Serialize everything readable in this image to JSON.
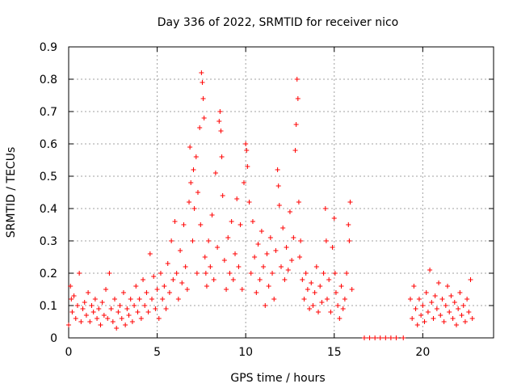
{
  "chart_data": {
    "type": "scatter",
    "title": "Day 336 of 2022, SRMTID for receiver nico",
    "xlabel": "GPS time / hours",
    "ylabel": "SRMTID / TECUs",
    "xlim": [
      0,
      24
    ],
    "ylim": [
      0,
      0.9
    ],
    "xticks": [
      0,
      5,
      10,
      15,
      20
    ],
    "xtick_labels": [
      "0",
      "5",
      "10",
      "15",
      "20"
    ],
    "yticks": [
      0,
      0.1,
      0.2,
      0.3,
      0.4,
      0.5,
      0.6,
      0.7,
      0.8,
      0.9
    ],
    "ytick_labels": [
      "0",
      "0.1",
      "0.2",
      "0.3",
      "0.4",
      "0.5",
      "0.6",
      "0.7",
      "0.8",
      "0.9"
    ],
    "grid": true,
    "marker": "+",
    "color": "#ff0000",
    "series": [
      {
        "name": "SRMTID",
        "points": [
          [
            0.0,
            0.04
          ],
          [
            0.1,
            0.16
          ],
          [
            0.15,
            0.12
          ],
          [
            0.2,
            0.08
          ],
          [
            0.3,
            0.13
          ],
          [
            0.4,
            0.06
          ],
          [
            0.5,
            0.1
          ],
          [
            0.6,
            0.2
          ],
          [
            0.7,
            0.05
          ],
          [
            0.8,
            0.09
          ],
          [
            0.9,
            0.11
          ],
          [
            1.0,
            0.07
          ],
          [
            1.1,
            0.14
          ],
          [
            1.2,
            0.05
          ],
          [
            1.3,
            0.1
          ],
          [
            1.4,
            0.08
          ],
          [
            1.5,
            0.12
          ],
          [
            1.6,
            0.06
          ],
          [
            1.7,
            0.09
          ],
          [
            1.8,
            0.04
          ],
          [
            1.9,
            0.11
          ],
          [
            2.0,
            0.07
          ],
          [
            2.1,
            0.15
          ],
          [
            2.2,
            0.06
          ],
          [
            2.3,
            0.2
          ],
          [
            2.4,
            0.09
          ],
          [
            2.5,
            0.05
          ],
          [
            2.6,
            0.12
          ],
          [
            2.7,
            0.03
          ],
          [
            2.8,
            0.08
          ],
          [
            2.9,
            0.1
          ],
          [
            3.0,
            0.06
          ],
          [
            3.1,
            0.14
          ],
          [
            3.2,
            0.04
          ],
          [
            3.3,
            0.09
          ],
          [
            3.4,
            0.07
          ],
          [
            3.5,
            0.12
          ],
          [
            3.6,
            0.05
          ],
          [
            3.7,
            0.1
          ],
          [
            3.8,
            0.16
          ],
          [
            3.9,
            0.08
          ],
          [
            4.0,
            0.12
          ],
          [
            4.1,
            0.06
          ],
          [
            4.2,
            0.18
          ],
          [
            4.3,
            0.1
          ],
          [
            4.4,
            0.14
          ],
          [
            4.5,
            0.08
          ],
          [
            4.6,
            0.26
          ],
          [
            4.7,
            0.12
          ],
          [
            4.8,
            0.19
          ],
          [
            4.9,
            0.09
          ],
          [
            5.0,
            0.15
          ],
          [
            5.1,
            0.06
          ],
          [
            5.2,
            0.2
          ],
          [
            5.3,
            0.12
          ],
          [
            5.4,
            0.16
          ],
          [
            5.5,
            0.09
          ],
          [
            5.6,
            0.23
          ],
          [
            5.7,
            0.14
          ],
          [
            5.8,
            0.3
          ],
          [
            5.9,
            0.18
          ],
          [
            6.0,
            0.36
          ],
          [
            6.1,
            0.2
          ],
          [
            6.2,
            0.12
          ],
          [
            6.3,
            0.27
          ],
          [
            6.4,
            0.17
          ],
          [
            6.5,
            0.35
          ],
          [
            6.6,
            0.22
          ],
          [
            6.7,
            0.15
          ],
          [
            6.8,
            0.42
          ],
          [
            6.85,
            0.59
          ],
          [
            6.9,
            0.48
          ],
          [
            7.0,
            0.3
          ],
          [
            7.05,
            0.52
          ],
          [
            7.1,
            0.4
          ],
          [
            7.2,
            0.56
          ],
          [
            7.25,
            0.2
          ],
          [
            7.3,
            0.45
          ],
          [
            7.4,
            0.65
          ],
          [
            7.45,
            0.35
          ],
          [
            7.5,
            0.82
          ],
          [
            7.55,
            0.79
          ],
          [
            7.6,
            0.74
          ],
          [
            7.65,
            0.68
          ],
          [
            7.7,
            0.25
          ],
          [
            7.75,
            0.2
          ],
          [
            7.8,
            0.16
          ],
          [
            7.9,
            0.3
          ],
          [
            8.0,
            0.22
          ],
          [
            8.1,
            0.38
          ],
          [
            8.2,
            0.18
          ],
          [
            8.3,
            0.51
          ],
          [
            8.4,
            0.28
          ],
          [
            8.5,
            0.67
          ],
          [
            8.55,
            0.7
          ],
          [
            8.6,
            0.64
          ],
          [
            8.65,
            0.56
          ],
          [
            8.7,
            0.44
          ],
          [
            8.8,
            0.24
          ],
          [
            8.9,
            0.15
          ],
          [
            9.0,
            0.31
          ],
          [
            9.1,
            0.2
          ],
          [
            9.2,
            0.36
          ],
          [
            9.3,
            0.18
          ],
          [
            9.4,
            0.26
          ],
          [
            9.5,
            0.43
          ],
          [
            9.6,
            0.22
          ],
          [
            9.7,
            0.35
          ],
          [
            9.8,
            0.15
          ],
          [
            9.9,
            0.48
          ],
          [
            10.0,
            0.6
          ],
          [
            10.05,
            0.58
          ],
          [
            10.1,
            0.53
          ],
          [
            10.2,
            0.42
          ],
          [
            10.3,
            0.2
          ],
          [
            10.4,
            0.36
          ],
          [
            10.5,
            0.25
          ],
          [
            10.6,
            0.14
          ],
          [
            10.7,
            0.29
          ],
          [
            10.8,
            0.18
          ],
          [
            10.9,
            0.33
          ],
          [
            11.0,
            0.22
          ],
          [
            11.1,
            0.1
          ],
          [
            11.2,
            0.26
          ],
          [
            11.3,
            0.16
          ],
          [
            11.4,
            0.31
          ],
          [
            11.5,
            0.2
          ],
          [
            11.6,
            0.12
          ],
          [
            11.7,
            0.27
          ],
          [
            11.8,
            0.52
          ],
          [
            11.85,
            0.47
          ],
          [
            11.9,
            0.41
          ],
          [
            12.0,
            0.22
          ],
          [
            12.1,
            0.34
          ],
          [
            12.2,
            0.18
          ],
          [
            12.3,
            0.28
          ],
          [
            12.4,
            0.21
          ],
          [
            12.5,
            0.39
          ],
          [
            12.6,
            0.24
          ],
          [
            12.7,
            0.31
          ],
          [
            12.8,
            0.58
          ],
          [
            12.85,
            0.66
          ],
          [
            12.9,
            0.8
          ],
          [
            12.95,
            0.74
          ],
          [
            13.0,
            0.42
          ],
          [
            13.05,
            0.25
          ],
          [
            13.1,
            0.3
          ],
          [
            13.2,
            0.18
          ],
          [
            13.3,
            0.12
          ],
          [
            13.4,
            0.2
          ],
          [
            13.5,
            0.15
          ],
          [
            13.6,
            0.09
          ],
          [
            13.7,
            0.17
          ],
          [
            13.8,
            0.1
          ],
          [
            13.9,
            0.14
          ],
          [
            14.0,
            0.22
          ],
          [
            14.1,
            0.08
          ],
          [
            14.2,
            0.16
          ],
          [
            14.3,
            0.11
          ],
          [
            14.4,
            0.2
          ],
          [
            14.5,
            0.4
          ],
          [
            14.55,
            0.3
          ],
          [
            14.6,
            0.12
          ],
          [
            14.7,
            0.18
          ],
          [
            14.8,
            0.08
          ],
          [
            14.9,
            0.28
          ],
          [
            15.0,
            0.37
          ],
          [
            15.05,
            0.2
          ],
          [
            15.1,
            0.14
          ],
          [
            15.2,
            0.1
          ],
          [
            15.3,
            0.06
          ],
          [
            15.4,
            0.16
          ],
          [
            15.5,
            0.09
          ],
          [
            15.6,
            0.12
          ],
          [
            15.7,
            0.2
          ],
          [
            15.8,
            0.35
          ],
          [
            15.85,
            0.3
          ],
          [
            15.9,
            0.42
          ],
          [
            16.0,
            0.15
          ],
          [
            16.7,
            0.0
          ],
          [
            17.0,
            0.0
          ],
          [
            17.3,
            0.0
          ],
          [
            17.6,
            0.0
          ],
          [
            17.9,
            0.0
          ],
          [
            18.2,
            0.0
          ],
          [
            18.5,
            0.0
          ],
          [
            18.9,
            0.0
          ],
          [
            19.3,
            0.12
          ],
          [
            19.4,
            0.06
          ],
          [
            19.5,
            0.16
          ],
          [
            19.6,
            0.09
          ],
          [
            19.7,
            0.04
          ],
          [
            19.8,
            0.12
          ],
          [
            19.9,
            0.07
          ],
          [
            20.0,
            0.1
          ],
          [
            20.1,
            0.05
          ],
          [
            20.2,
            0.14
          ],
          [
            20.3,
            0.08
          ],
          [
            20.4,
            0.21
          ],
          [
            20.5,
            0.11
          ],
          [
            20.6,
            0.06
          ],
          [
            20.7,
            0.13
          ],
          [
            20.8,
            0.09
          ],
          [
            20.9,
            0.17
          ],
          [
            21.0,
            0.07
          ],
          [
            21.1,
            0.12
          ],
          [
            21.2,
            0.05
          ],
          [
            21.3,
            0.1
          ],
          [
            21.4,
            0.16
          ],
          [
            21.5,
            0.08
          ],
          [
            21.6,
            0.13
          ],
          [
            21.7,
            0.06
          ],
          [
            21.8,
            0.11
          ],
          [
            21.9,
            0.04
          ],
          [
            22.0,
            0.09
          ],
          [
            22.1,
            0.14
          ],
          [
            22.2,
            0.07
          ],
          [
            22.3,
            0.1
          ],
          [
            22.4,
            0.05
          ],
          [
            22.5,
            0.12
          ],
          [
            22.6,
            0.08
          ],
          [
            22.7,
            0.18
          ],
          [
            22.8,
            0.06
          ]
        ]
      }
    ]
  }
}
